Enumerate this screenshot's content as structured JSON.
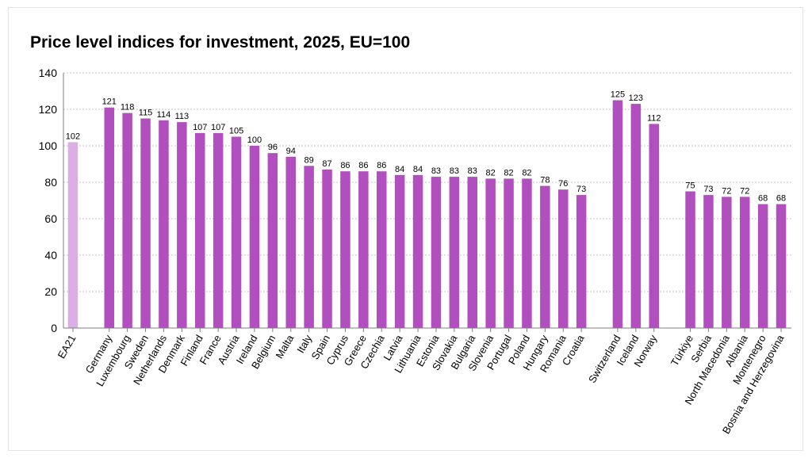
{
  "chart_data": {
    "type": "bar",
    "title": "Price level indices for investment, 2025, EU=100",
    "xlabel": "",
    "ylabel": "",
    "ylim": [
      0,
      140
    ],
    "yticks": [
      0,
      20,
      40,
      60,
      80,
      100,
      120,
      140
    ],
    "grid": "horizontal dashed",
    "categories": [
      "EA21",
      "Germany",
      "Luxembourg",
      "Sweden",
      "Netherlands",
      "Denmark",
      "Finland",
      "France",
      "Austria",
      "Ireland",
      "Belgium",
      "Malta",
      "Italy",
      "Spain",
      "Cyprus",
      "Greece",
      "Czechia",
      "Latvia",
      "Lithuania",
      "Estonia",
      "Slovakia",
      "Bulgaria",
      "Slovenia",
      "Portugal",
      "Poland",
      "Hungary",
      "Romania",
      "Croatia",
      "Switzerland",
      "Iceland",
      "Norway",
      "Türkiye",
      "Serbia",
      "North Macedonia",
      "Albania",
      "Montenegro",
      "Bosnia and Herzegovina"
    ],
    "values": [
      102,
      121,
      118,
      115,
      114,
      113,
      107,
      107,
      105,
      100,
      96,
      94,
      89,
      87,
      86,
      86,
      86,
      84,
      84,
      83,
      83,
      83,
      82,
      82,
      82,
      78,
      76,
      73,
      125,
      123,
      112,
      75,
      73,
      72,
      72,
      68,
      68
    ],
    "groups": [
      {
        "members": [
          "EA21"
        ],
        "color": "#dcaee6"
      },
      {
        "members": [
          "Germany",
          "Luxembourg",
          "Sweden",
          "Netherlands",
          "Denmark",
          "Finland",
          "France",
          "Austria",
          "Ireland",
          "Belgium",
          "Malta",
          "Italy",
          "Spain",
          "Cyprus",
          "Greece",
          "Czechia",
          "Latvia",
          "Lithuania",
          "Estonia",
          "Slovakia",
          "Bulgaria",
          "Slovenia",
          "Portugal",
          "Poland",
          "Hungary",
          "Romania",
          "Croatia"
        ],
        "color": "#b24fbe"
      },
      {
        "members": [
          "Switzerland",
          "Iceland",
          "Norway"
        ],
        "color": "#b24fbe"
      },
      {
        "members": [
          "Türkiye",
          "Serbia",
          "North Macedonia",
          "Albania",
          "Montenegro",
          "Bosnia and Herzegovina"
        ],
        "color": "#b24fbe"
      }
    ],
    "data_labels": true
  }
}
